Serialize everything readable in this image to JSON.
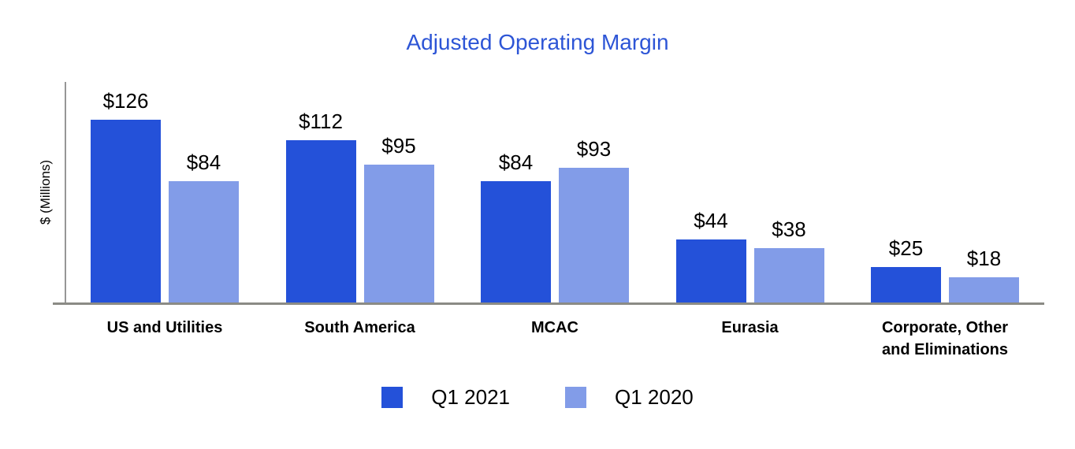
{
  "chart_data": {
    "type": "bar",
    "title": "Adjusted Operating Margin",
    "xlabel": "",
    "ylabel": "$ (Millions)",
    "value_prefix": "$",
    "categories": [
      "US and Utilities",
      "South America",
      "MCAC",
      "Eurasia",
      "Corporate, Other and Eliminations"
    ],
    "series": [
      {
        "name": "Q1 2021",
        "color": "#2451d9",
        "values": [
          126,
          112,
          84,
          44,
          25
        ]
      },
      {
        "name": "Q1 2020",
        "color": "#829ce8",
        "values": [
          84,
          95,
          93,
          38,
          18
        ]
      }
    ],
    "ylim": [
      0,
      150
    ],
    "grid": false,
    "data_labels": true,
    "legend_position": "bottom"
  },
  "colors": {
    "title_text": "#2d55d6",
    "axis_line": "#979797",
    "baseline": "#8b8b85",
    "label_text": "#000000"
  }
}
